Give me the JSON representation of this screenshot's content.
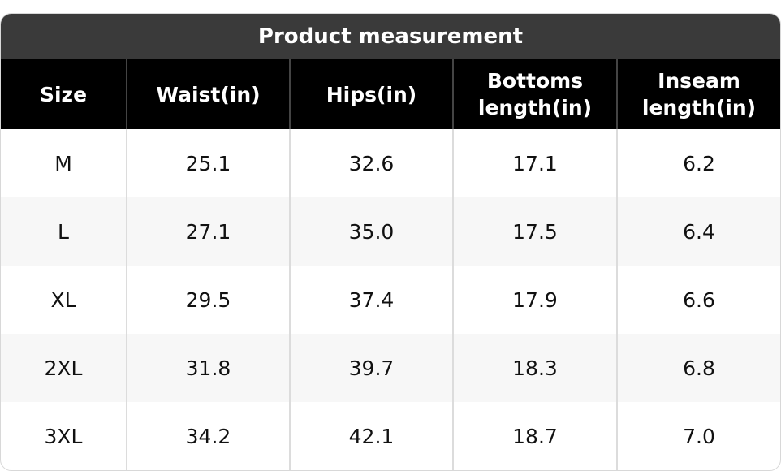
{
  "title": "Product measurement",
  "table": {
    "header": [
      "Size",
      "Waist(in)",
      "Hips(in)",
      "Bottoms length(in)",
      "Inseam length(in)"
    ],
    "rows": [
      [
        "M",
        "25.1",
        "32.6",
        "17.1",
        "6.2"
      ],
      [
        "L",
        "27.1",
        "35.0",
        "17.5",
        "6.4"
      ],
      [
        "XL",
        "29.5",
        "37.4",
        "17.9",
        "6.6"
      ],
      [
        "2XL",
        "31.8",
        "39.7",
        "18.3",
        "6.8"
      ],
      [
        "3XL",
        "34.2",
        "42.1",
        "18.7",
        "7.0"
      ]
    ]
  }
}
